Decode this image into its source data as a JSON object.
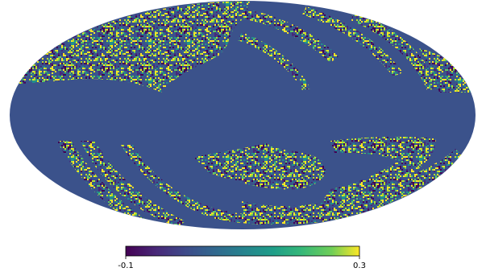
{
  "colorbar": {
    "min": -0.1,
    "max": 0.3,
    "ticks": [
      -0.1,
      0.3
    ]
  }
}
